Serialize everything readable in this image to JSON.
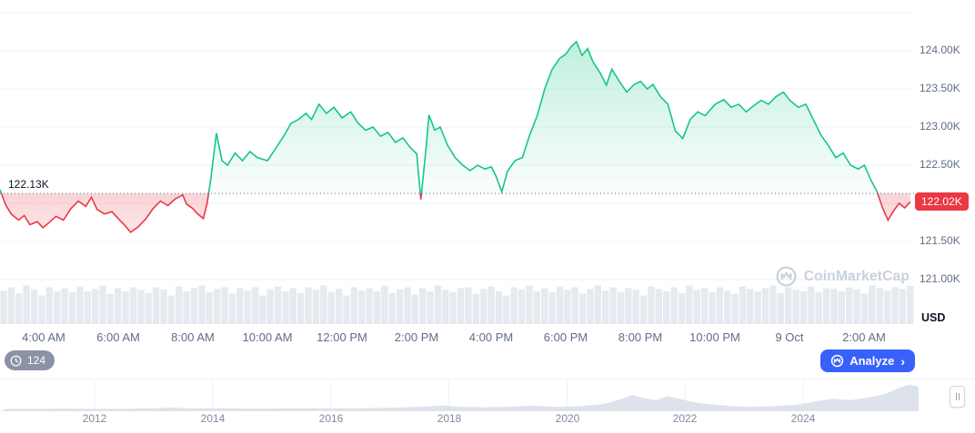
{
  "watermark": {
    "text": "CoinMarketCap"
  },
  "counter_badge": {
    "label": "124"
  },
  "analyze_button": {
    "label": "Analyze",
    "chevron": "›"
  },
  "chart_data": {
    "main": {
      "type": "area",
      "unit_label": "USD",
      "open_price_label": "122.13K",
      "current_price_label": "122.02K",
      "baseline_value": 122.13,
      "current_value": 122.02,
      "colors": {
        "up": "#16c784",
        "down": "#ea3943",
        "grid": "#eff2f5",
        "baseline": "#58667e",
        "axis_text": "#616e85",
        "volume_bar": "#e6e9ef",
        "badge_bg": "#ea3943"
      },
      "y_axis": {
        "domain": [
          121.0,
          124.5
        ],
        "gridline_values": [
          124.5,
          124.0,
          123.5,
          123.0,
          122.5,
          122.0,
          121.5,
          121.0
        ],
        "ticks": [
          {
            "value": 124.0,
            "label": "124.00K"
          },
          {
            "value": 123.5,
            "label": "123.50K"
          },
          {
            "value": 123.0,
            "label": "123.00K"
          },
          {
            "value": 122.5,
            "label": "122.50K"
          },
          {
            "value": 121.5,
            "label": "121.50K"
          },
          {
            "value": 121.0,
            "label": "121.00K"
          }
        ]
      },
      "x_axis": {
        "domain_hours": [
          0,
          24.5
        ],
        "ticks": [
          {
            "t": 1.17,
            "label": "4:00 AM"
          },
          {
            "t": 3.17,
            "label": "6:00 AM"
          },
          {
            "t": 5.17,
            "label": "8:00 AM"
          },
          {
            "t": 7.17,
            "label": "10:00 AM"
          },
          {
            "t": 9.17,
            "label": "12:00 PM"
          },
          {
            "t": 11.17,
            "label": "2:00 PM"
          },
          {
            "t": 13.17,
            "label": "4:00 PM"
          },
          {
            "t": 15.17,
            "label": "6:00 PM"
          },
          {
            "t": 17.17,
            "label": "8:00 PM"
          },
          {
            "t": 19.17,
            "label": "10:00 PM"
          },
          {
            "t": 21.17,
            "label": "9 Oct"
          },
          {
            "t": 23.17,
            "label": "2:00 AM"
          }
        ]
      },
      "series": [
        [
          0,
          122.18
        ],
        [
          0.15,
          121.98
        ],
        [
          0.3,
          121.86
        ],
        [
          0.5,
          121.78
        ],
        [
          0.65,
          121.84
        ],
        [
          0.8,
          121.72
        ],
        [
          1.0,
          121.76
        ],
        [
          1.15,
          121.68
        ],
        [
          1.3,
          121.74
        ],
        [
          1.5,
          121.83
        ],
        [
          1.7,
          121.78
        ],
        [
          1.9,
          121.93
        ],
        [
          2.1,
          122.03
        ],
        [
          2.3,
          121.96
        ],
        [
          2.45,
          122.08
        ],
        [
          2.6,
          121.92
        ],
        [
          2.8,
          121.86
        ],
        [
          3.0,
          121.89
        ],
        [
          3.17,
          121.8
        ],
        [
          3.35,
          121.71
        ],
        [
          3.5,
          121.62
        ],
        [
          3.7,
          121.69
        ],
        [
          3.9,
          121.79
        ],
        [
          4.1,
          121.93
        ],
        [
          4.3,
          122.03
        ],
        [
          4.5,
          121.97
        ],
        [
          4.7,
          122.06
        ],
        [
          4.9,
          122.11
        ],
        [
          5.0,
          121.99
        ],
        [
          5.17,
          121.93
        ],
        [
          5.3,
          121.86
        ],
        [
          5.45,
          121.8
        ],
        [
          5.55,
          122.0
        ],
        [
          5.65,
          122.32
        ],
        [
          5.8,
          122.92
        ],
        [
          5.95,
          122.56
        ],
        [
          6.1,
          122.5
        ],
        [
          6.3,
          122.66
        ],
        [
          6.5,
          122.56
        ],
        [
          6.7,
          122.68
        ],
        [
          6.9,
          122.6
        ],
        [
          7.17,
          122.56
        ],
        [
          7.4,
          122.73
        ],
        [
          7.6,
          122.88
        ],
        [
          7.8,
          123.05
        ],
        [
          8.0,
          123.1
        ],
        [
          8.2,
          123.18
        ],
        [
          8.35,
          123.1
        ],
        [
          8.55,
          123.3
        ],
        [
          8.75,
          123.18
        ],
        [
          8.95,
          123.26
        ],
        [
          9.17,
          123.12
        ],
        [
          9.4,
          123.2
        ],
        [
          9.6,
          123.05
        ],
        [
          9.8,
          122.96
        ],
        [
          10.0,
          123.0
        ],
        [
          10.2,
          122.88
        ],
        [
          10.4,
          122.93
        ],
        [
          10.6,
          122.8
        ],
        [
          10.8,
          122.86
        ],
        [
          11.0,
          122.73
        ],
        [
          11.17,
          122.65
        ],
        [
          11.28,
          122.05
        ],
        [
          11.4,
          122.62
        ],
        [
          11.5,
          123.16
        ],
        [
          11.65,
          122.96
        ],
        [
          11.8,
          123.0
        ],
        [
          12.0,
          122.76
        ],
        [
          12.2,
          122.6
        ],
        [
          12.4,
          122.5
        ],
        [
          12.6,
          122.43
        ],
        [
          12.8,
          122.5
        ],
        [
          13.0,
          122.45
        ],
        [
          13.17,
          122.48
        ],
        [
          13.3,
          122.35
        ],
        [
          13.45,
          122.15
        ],
        [
          13.6,
          122.42
        ],
        [
          13.8,
          122.56
        ],
        [
          14.0,
          122.6
        ],
        [
          14.2,
          122.9
        ],
        [
          14.4,
          123.15
        ],
        [
          14.6,
          123.5
        ],
        [
          14.8,
          123.76
        ],
        [
          15.0,
          123.9
        ],
        [
          15.17,
          123.96
        ],
        [
          15.3,
          124.05
        ],
        [
          15.45,
          124.12
        ],
        [
          15.6,
          123.94
        ],
        [
          15.75,
          124.03
        ],
        [
          15.9,
          123.85
        ],
        [
          16.1,
          123.7
        ],
        [
          16.25,
          123.55
        ],
        [
          16.4,
          123.76
        ],
        [
          16.6,
          123.6
        ],
        [
          16.8,
          123.46
        ],
        [
          17.0,
          123.56
        ],
        [
          17.17,
          123.6
        ],
        [
          17.35,
          123.5
        ],
        [
          17.5,
          123.56
        ],
        [
          17.7,
          123.4
        ],
        [
          17.9,
          123.3
        ],
        [
          18.1,
          122.95
        ],
        [
          18.3,
          122.85
        ],
        [
          18.5,
          123.1
        ],
        [
          18.7,
          123.2
        ],
        [
          18.9,
          123.15
        ],
        [
          19.17,
          123.3
        ],
        [
          19.4,
          123.36
        ],
        [
          19.6,
          123.26
        ],
        [
          19.8,
          123.3
        ],
        [
          20.0,
          123.2
        ],
        [
          20.2,
          123.28
        ],
        [
          20.4,
          123.35
        ],
        [
          20.6,
          123.3
        ],
        [
          20.8,
          123.4
        ],
        [
          21.0,
          123.46
        ],
        [
          21.17,
          123.35
        ],
        [
          21.4,
          123.26
        ],
        [
          21.6,
          123.3
        ],
        [
          21.8,
          123.1
        ],
        [
          22.0,
          122.9
        ],
        [
          22.2,
          122.76
        ],
        [
          22.4,
          122.6
        ],
        [
          22.6,
          122.66
        ],
        [
          22.8,
          122.5
        ],
        [
          23.0,
          122.45
        ],
        [
          23.17,
          122.5
        ],
        [
          23.35,
          122.3
        ],
        [
          23.5,
          122.16
        ],
        [
          23.65,
          121.95
        ],
        [
          23.8,
          121.78
        ],
        [
          23.95,
          121.9
        ],
        [
          24.1,
          122.0
        ],
        [
          24.25,
          121.94
        ],
        [
          24.4,
          122.02
        ]
      ],
      "volume": [
        0.82,
        0.9,
        0.75,
        0.95,
        0.85,
        0.7,
        0.9,
        0.8,
        0.88,
        0.78,
        0.92,
        0.8,
        0.86,
        0.95,
        0.74,
        0.88,
        0.8,
        0.9,
        0.84,
        0.76,
        0.9,
        0.85,
        0.7,
        0.92,
        0.8,
        0.88,
        0.95,
        0.78,
        0.86,
        0.9,
        0.75,
        0.88,
        0.82,
        0.9,
        0.7,
        0.85,
        0.92,
        0.8,
        0.88,
        0.76,
        0.9,
        0.84,
        0.95,
        0.78,
        0.86,
        0.7,
        0.9,
        0.82,
        0.88,
        0.8,
        0.93,
        0.76,
        0.85,
        0.9,
        0.72,
        0.88,
        0.8,
        0.95,
        0.84,
        0.78,
        0.88,
        0.9,
        0.74,
        0.86,
        0.92,
        0.8,
        0.7,
        0.9,
        0.85,
        0.95,
        0.8,
        0.88,
        0.78,
        0.92,
        0.84,
        0.9,
        0.75,
        0.86,
        0.95,
        0.82,
        0.9,
        0.78,
        0.88,
        0.84,
        0.7,
        0.92,
        0.86,
        0.8,
        0.9,
        0.76,
        0.95,
        0.84,
        0.88,
        0.78,
        0.9,
        0.82,
        0.74,
        0.92,
        0.86,
        0.8,
        0.88,
        0.95,
        0.76,
        0.9,
        0.84,
        0.8,
        0.92,
        0.78,
        0.88,
        0.86,
        0.8,
        0.9,
        0.85,
        0.75,
        0.95,
        0.88,
        0.82,
        0.9,
        0.86,
        0.94
      ]
    },
    "range": {
      "type": "area",
      "fill_color": "#dee3eb",
      "gridline_color": "#eef1f6",
      "domain_years": [
        2010.4,
        2025.95
      ],
      "year_gridlines": [
        2012,
        2014,
        2016,
        2018,
        2020,
        2022,
        2024
      ],
      "years": [
        {
          "value": 2012,
          "label": "2012"
        },
        {
          "value": 2014,
          "label": "2014"
        },
        {
          "value": 2016,
          "label": "2016"
        },
        {
          "value": 2018,
          "label": "2018"
        },
        {
          "value": 2020,
          "label": "2020"
        },
        {
          "value": 2022,
          "label": "2022"
        },
        {
          "value": 2024,
          "label": "2024"
        }
      ],
      "series": [
        [
          2010.5,
          0.02
        ],
        [
          2011,
          0.02
        ],
        [
          2011.5,
          0.03
        ],
        [
          2012,
          0.02
        ],
        [
          2012.5,
          0.02
        ],
        [
          2013,
          0.04
        ],
        [
          2013.3,
          0.07
        ],
        [
          2013.6,
          0.04
        ],
        [
          2014,
          0.05
        ],
        [
          2014.5,
          0.03
        ],
        [
          2015,
          0.03
        ],
        [
          2015.5,
          0.04
        ],
        [
          2016,
          0.04
        ],
        [
          2016.5,
          0.05
        ],
        [
          2017,
          0.06
        ],
        [
          2017.5,
          0.1
        ],
        [
          2017.9,
          0.15
        ],
        [
          2018.2,
          0.1
        ],
        [
          2018.6,
          0.08
        ],
        [
          2019.0,
          0.1
        ],
        [
          2019.4,
          0.14
        ],
        [
          2019.8,
          0.1
        ],
        [
          2020.2,
          0.12
        ],
        [
          2020.6,
          0.2
        ],
        [
          2020.9,
          0.38
        ],
        [
          2021.1,
          0.55
        ],
        [
          2021.3,
          0.42
        ],
        [
          2021.5,
          0.35
        ],
        [
          2021.7,
          0.5
        ],
        [
          2021.9,
          0.4
        ],
        [
          2022.2,
          0.25
        ],
        [
          2022.5,
          0.18
        ],
        [
          2022.8,
          0.12
        ],
        [
          2023.1,
          0.1
        ],
        [
          2023.5,
          0.12
        ],
        [
          2023.9,
          0.18
        ],
        [
          2024.2,
          0.3
        ],
        [
          2024.5,
          0.4
        ],
        [
          2024.8,
          0.35
        ],
        [
          2025.1,
          0.45
        ],
        [
          2025.4,
          0.6
        ],
        [
          2025.6,
          0.8
        ],
        [
          2025.8,
          0.95
        ],
        [
          2025.95,
          0.85
        ]
      ]
    }
  }
}
